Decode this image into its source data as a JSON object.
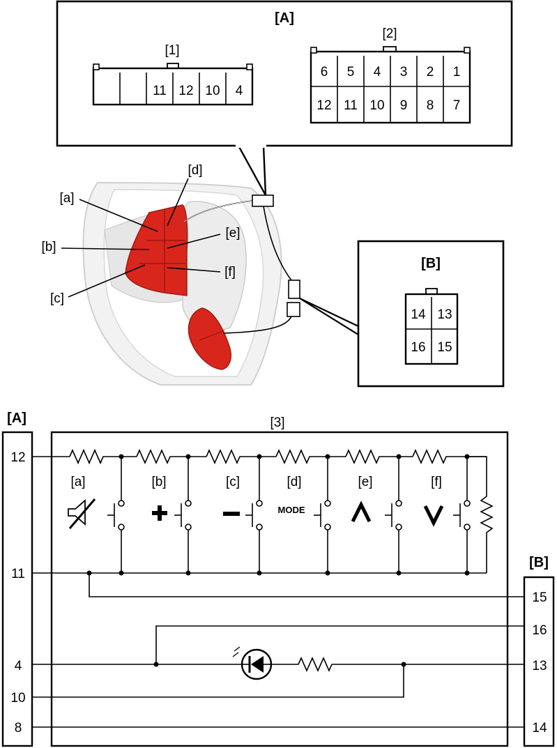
{
  "connector_a_callout": {
    "title": "[A]",
    "connector1": {
      "label": "[1]",
      "cells": [
        "",
        "",
        "11",
        "12",
        "10",
        "4"
      ]
    },
    "connector2": {
      "label": "[2]",
      "row_top": [
        "6",
        "5",
        "4",
        "3",
        "2",
        "1"
      ],
      "row_bottom": [
        "12",
        "11",
        "10",
        "9",
        "8",
        "7"
      ]
    }
  },
  "connector_b_callout": {
    "title": "[B]",
    "cells": [
      "14",
      "13",
      "16",
      "15"
    ]
  },
  "steering_wheel": {
    "callouts": [
      "[a]",
      "[b]",
      "[c]",
      "[d]",
      "[e]",
      "[f]"
    ],
    "switch_color": "#d9261c"
  },
  "schematic": {
    "left_header": "[A]",
    "right_header": "[B]",
    "module_label": "[3]",
    "left_pins": [
      "12",
      "11",
      "4",
      "10",
      "8"
    ],
    "right_pins": [
      "15",
      "16",
      "13",
      "14"
    ],
    "switches": [
      {
        "label": "[a]",
        "icon": "mute-icon"
      },
      {
        "label": "[b]",
        "icon": "plus-icon"
      },
      {
        "label": "[c]",
        "icon": "minus-icon"
      },
      {
        "label": "[d]",
        "icon": "mode-text",
        "text": "MODE"
      },
      {
        "label": "[e]",
        "icon": "up-chevron-icon"
      },
      {
        "label": "[f]",
        "icon": "down-chevron-icon"
      }
    ]
  }
}
